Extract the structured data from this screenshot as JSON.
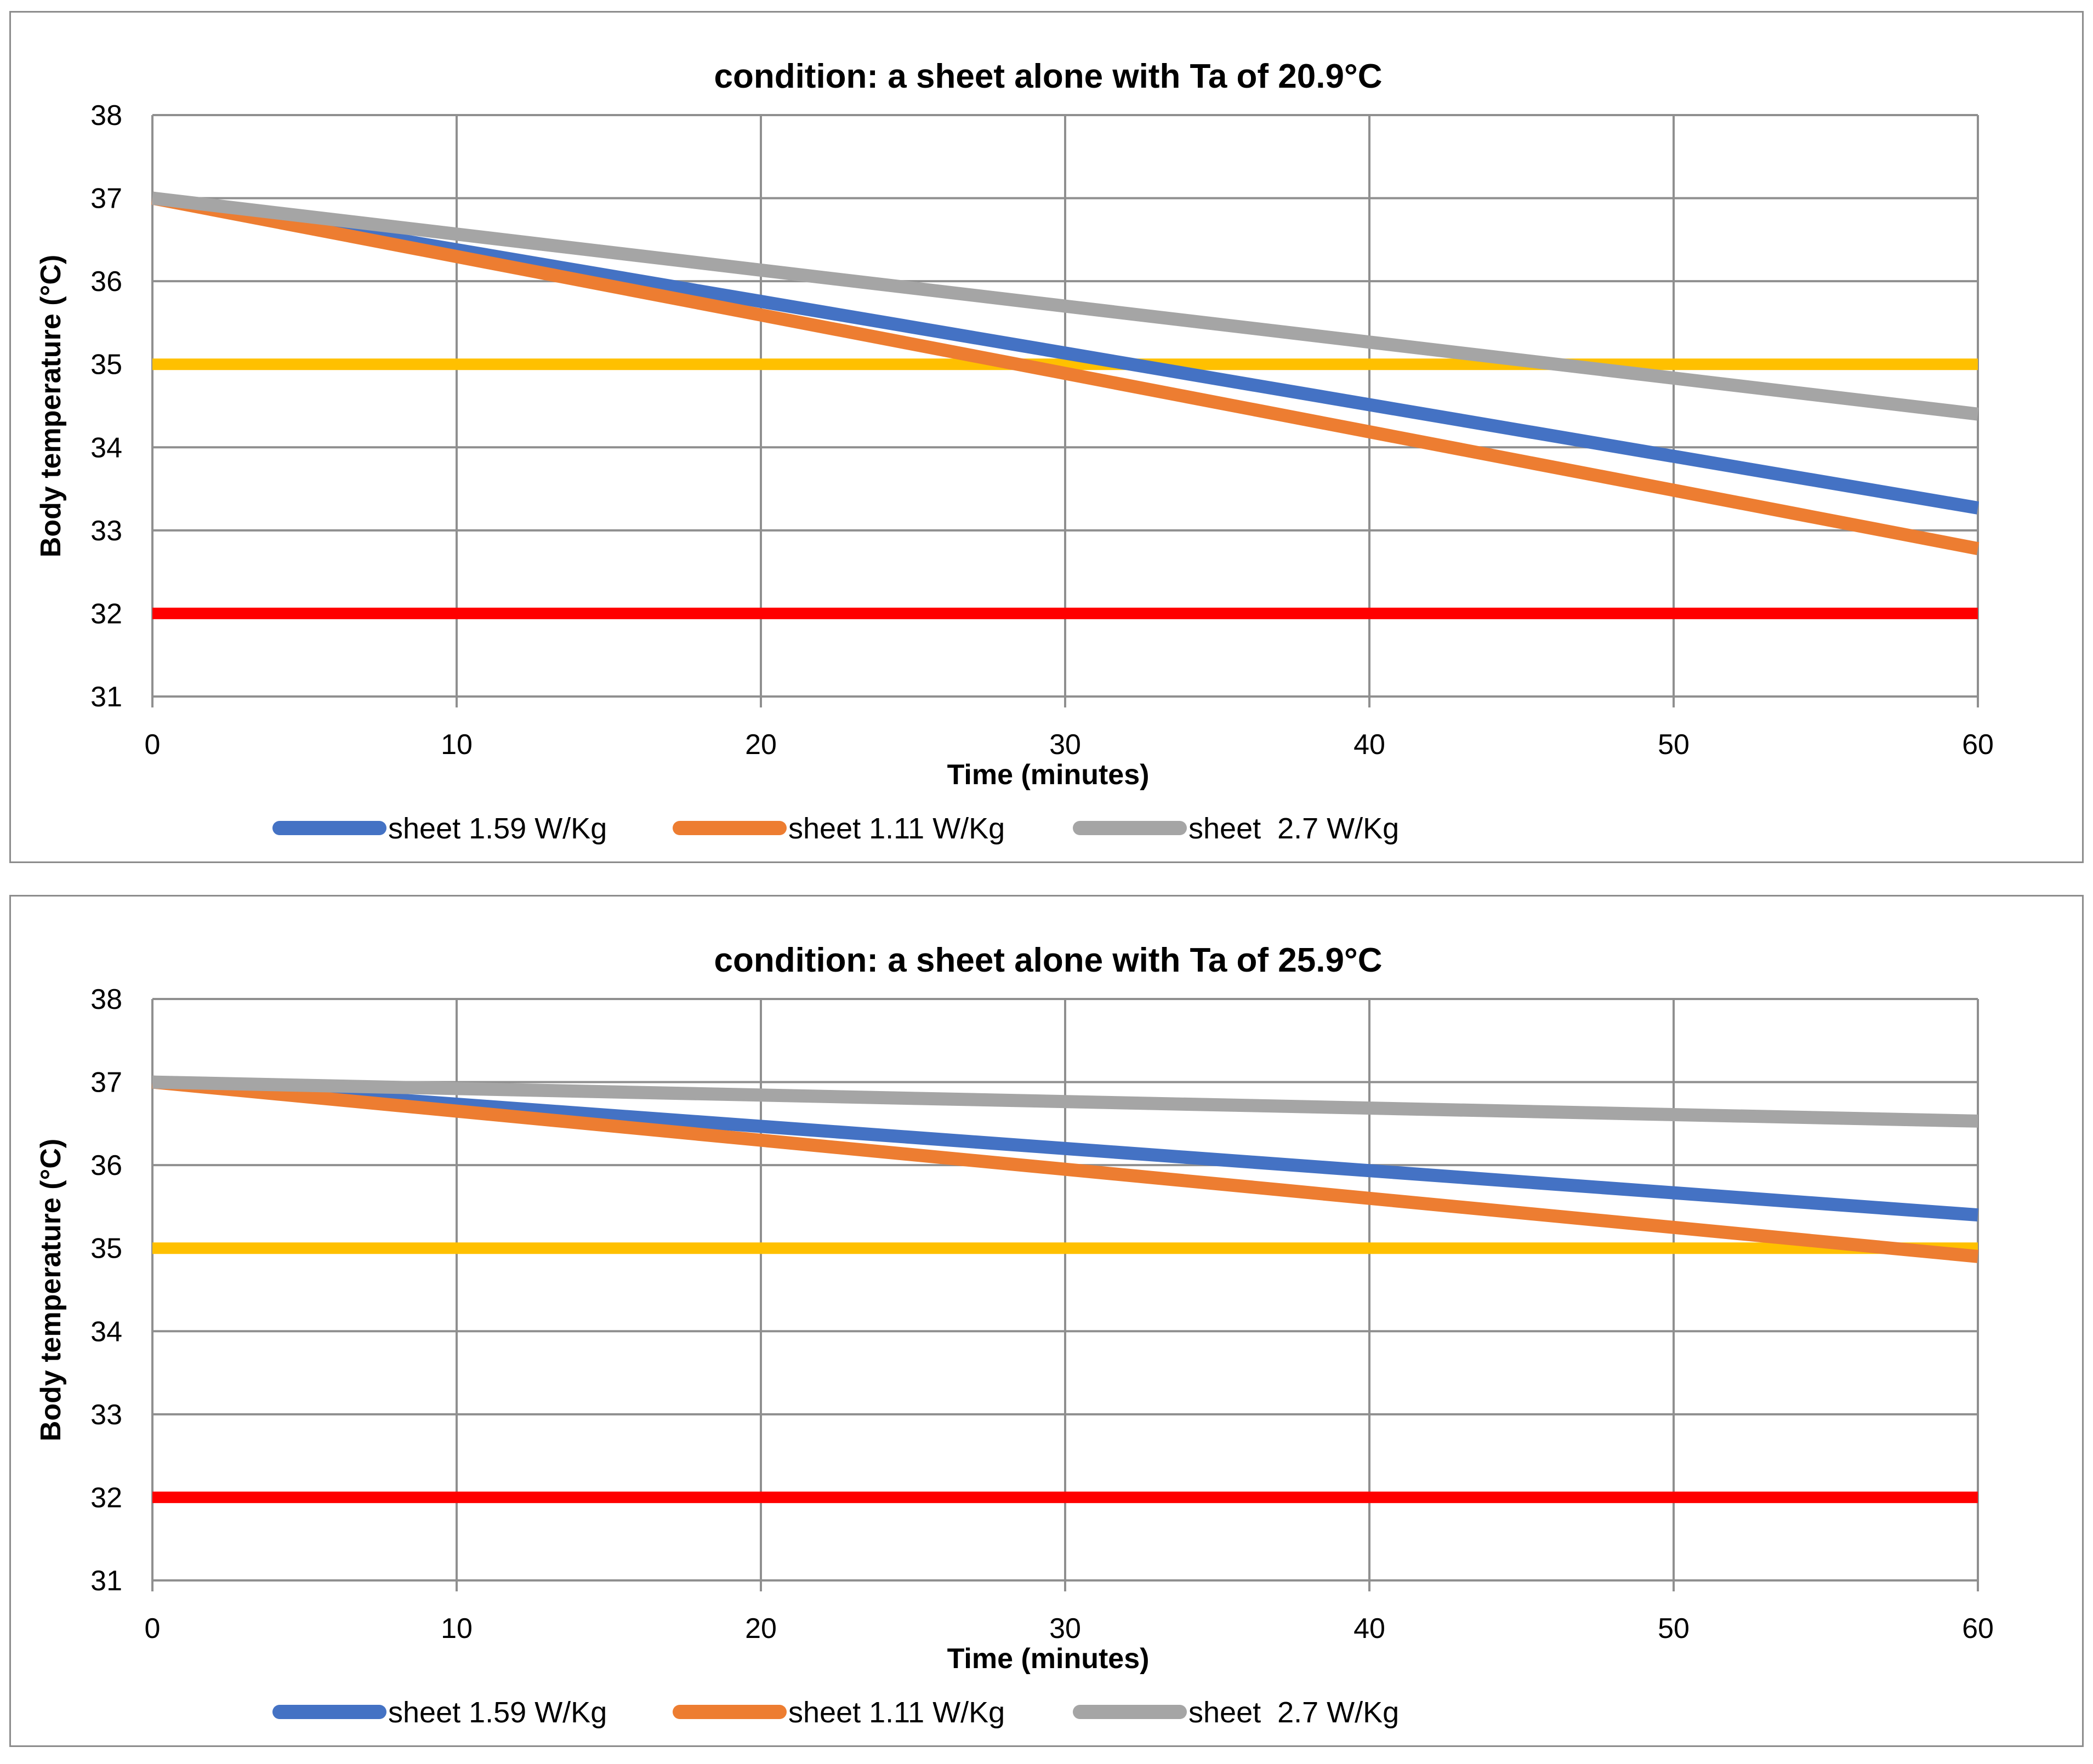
{
  "chart_data": [
    {
      "type": "line",
      "title": "condition: a sheet alone with Ta of 20.9°C",
      "xlabel": "Time (minutes)",
      "ylabel": "Body temperature (°C)",
      "xlim": [
        0,
        60
      ],
      "ylim": [
        31,
        38
      ],
      "x_ticks": [
        "0",
        "10",
        "20",
        "30",
        "40",
        "50",
        "60"
      ],
      "y_ticks": [
        "31",
        "32",
        "33",
        "34",
        "35",
        "36",
        "37",
        "38"
      ],
      "grid": true,
      "legend_position": "bottom",
      "series": [
        {
          "name": "sheet 1.59 W/Kg",
          "color": "#4472C4",
          "in_legend": true,
          "x": [
            0,
            60
          ],
          "y": [
            37.0,
            33.27
          ]
        },
        {
          "name": "sheet 1.11 W/Kg",
          "color": "#ED7D31",
          "in_legend": true,
          "x": [
            0,
            60
          ],
          "y": [
            37.0,
            32.78
          ]
        },
        {
          "name": "sheet  2.7 W/Kg",
          "color": "#A5A5A5",
          "in_legend": true,
          "x": [
            0,
            60
          ],
          "y": [
            37.0,
            34.4
          ]
        },
        {
          "name": "threshold 35°C",
          "color": "#FFC000",
          "in_legend": false,
          "x": [
            0,
            60
          ],
          "y": [
            35.0,
            35.0
          ]
        },
        {
          "name": "threshold 32°C",
          "color": "#FF0000",
          "in_legend": false,
          "x": [
            0,
            60
          ],
          "y": [
            32.0,
            32.0
          ]
        }
      ]
    },
    {
      "type": "line",
      "title": "condition: a sheet alone with Ta of 25.9°C",
      "xlabel": "Time (minutes)",
      "ylabel": "Body temperature (°C)",
      "xlim": [
        0,
        60
      ],
      "ylim": [
        31,
        38
      ],
      "x_ticks": [
        "0",
        "10",
        "20",
        "30",
        "40",
        "50",
        "60"
      ],
      "y_ticks": [
        "31",
        "32",
        "33",
        "34",
        "35",
        "36",
        "37",
        "38"
      ],
      "grid": true,
      "legend_position": "bottom",
      "series": [
        {
          "name": "sheet 1.59 W/Kg",
          "color": "#4472C4",
          "in_legend": true,
          "x": [
            0,
            60
          ],
          "y": [
            37.0,
            35.4
          ]
        },
        {
          "name": "sheet 1.11 W/Kg",
          "color": "#ED7D31",
          "in_legend": true,
          "x": [
            0,
            60
          ],
          "y": [
            37.0,
            34.9
          ]
        },
        {
          "name": "sheet  2.7 W/Kg",
          "color": "#A5A5A5",
          "in_legend": true,
          "x": [
            0,
            60
          ],
          "y": [
            37.0,
            36.53
          ]
        },
        {
          "name": "threshold 35°C",
          "color": "#FFC000",
          "in_legend": false,
          "x": [
            0,
            60
          ],
          "y": [
            35.0,
            35.0
          ]
        },
        {
          "name": "threshold 32°C",
          "color": "#FF0000",
          "in_legend": false,
          "x": [
            0,
            60
          ],
          "y": [
            32.0,
            32.0
          ]
        }
      ]
    }
  ]
}
